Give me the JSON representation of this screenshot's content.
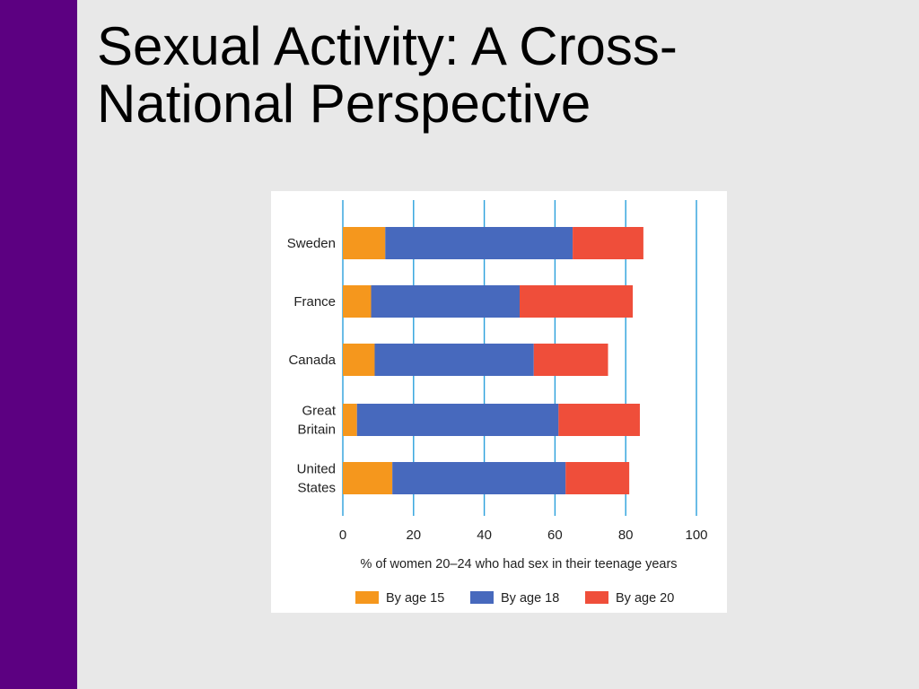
{
  "slide": {
    "title": "Sexual Activity: A Cross-National Perspective",
    "title_line1": "Sexual Activity: A Cross-",
    "title_line2": "National Perspective",
    "accent_color": "#5c0081",
    "background_color": "#e8e8e8"
  },
  "chart_data": {
    "type": "bar",
    "orientation": "horizontal",
    "stacked": true,
    "title": "",
    "xlabel": "% of women 20–24 who had sex in their teenage years",
    "ylabel": "",
    "xlim": [
      0,
      100
    ],
    "xticks": [
      0,
      20,
      40,
      60,
      80,
      100
    ],
    "grid": true,
    "legend_position": "bottom",
    "categories": [
      [
        "Sweden"
      ],
      [
        "France"
      ],
      [
        "Canada"
      ],
      [
        "Great",
        "Britain"
      ],
      [
        "United",
        "States"
      ]
    ],
    "series": [
      {
        "name": "By age 15",
        "color": "#f5971d",
        "values": [
          12,
          8,
          9,
          4,
          14
        ]
      },
      {
        "name": "By age 18",
        "color": "#4769bd",
        "values": [
          53,
          42,
          45,
          57,
          49
        ]
      },
      {
        "name": "By age 20",
        "color": "#ef4e3a",
        "values": [
          20,
          32,
          21,
          23,
          18
        ]
      }
    ]
  }
}
